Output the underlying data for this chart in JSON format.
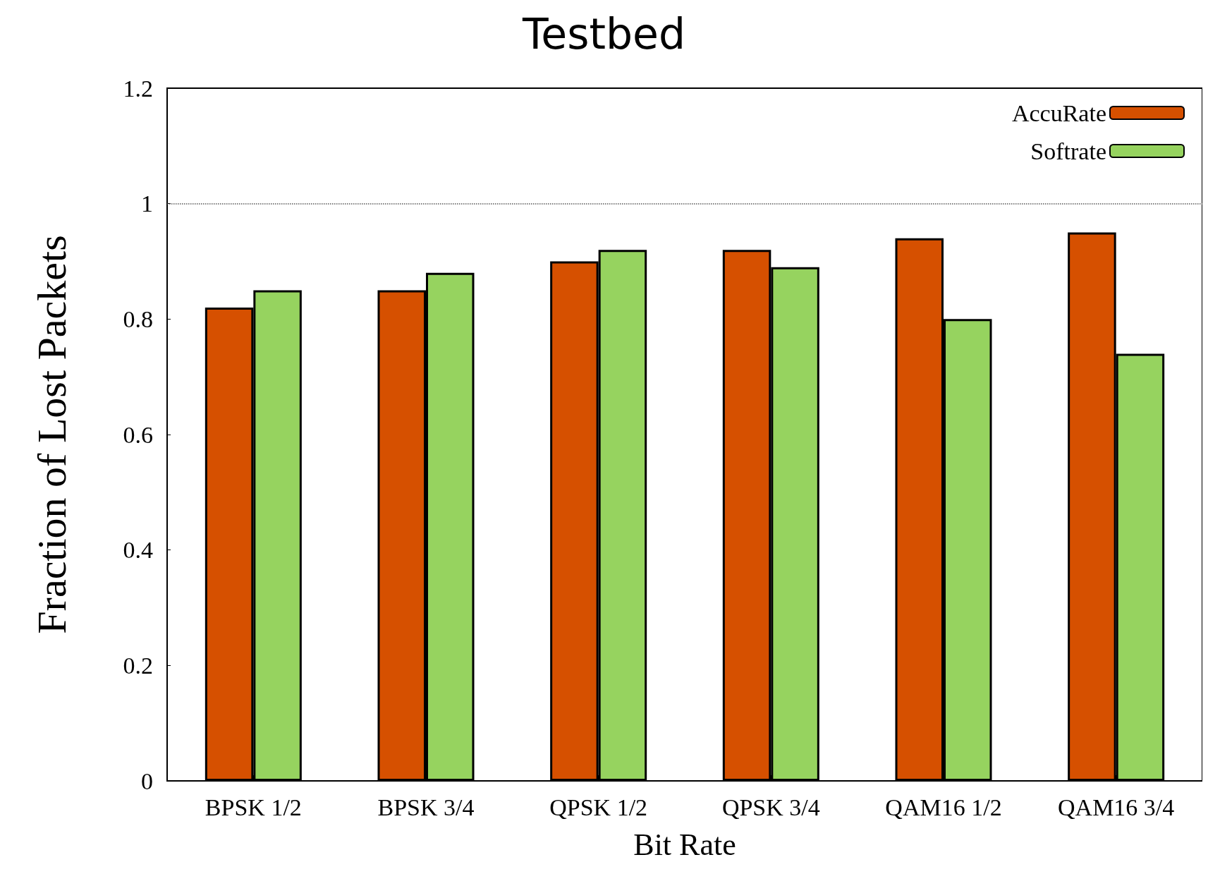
{
  "chart_data": {
    "type": "bar",
    "title": "Testbed",
    "xlabel": "Bit Rate",
    "ylabel": "Fraction of Lost Packets",
    "categories": [
      "BPSK 1/2",
      "BPSK 3/4",
      "QPSK 1/2",
      "QPSK 3/4",
      "QAM16 1/2",
      "QAM16 3/4"
    ],
    "series": [
      {
        "name": "AccuRate",
        "color": "#d65000",
        "values": [
          0.82,
          0.85,
          0.9,
          0.92,
          0.94,
          0.95
        ]
      },
      {
        "name": "Softrate",
        "color": "#96d35f",
        "values": [
          0.85,
          0.88,
          0.92,
          0.89,
          0.8,
          0.74
        ]
      }
    ],
    "ylim": [
      0,
      1.2
    ],
    "yticks": [
      0,
      0.2,
      0.4,
      0.6,
      0.8,
      1,
      1.2
    ],
    "ref_lines": [
      {
        "axis": "y",
        "value": 1,
        "line_style": "dotted",
        "color": "#555555"
      }
    ],
    "legend": "top right",
    "grid": false
  }
}
